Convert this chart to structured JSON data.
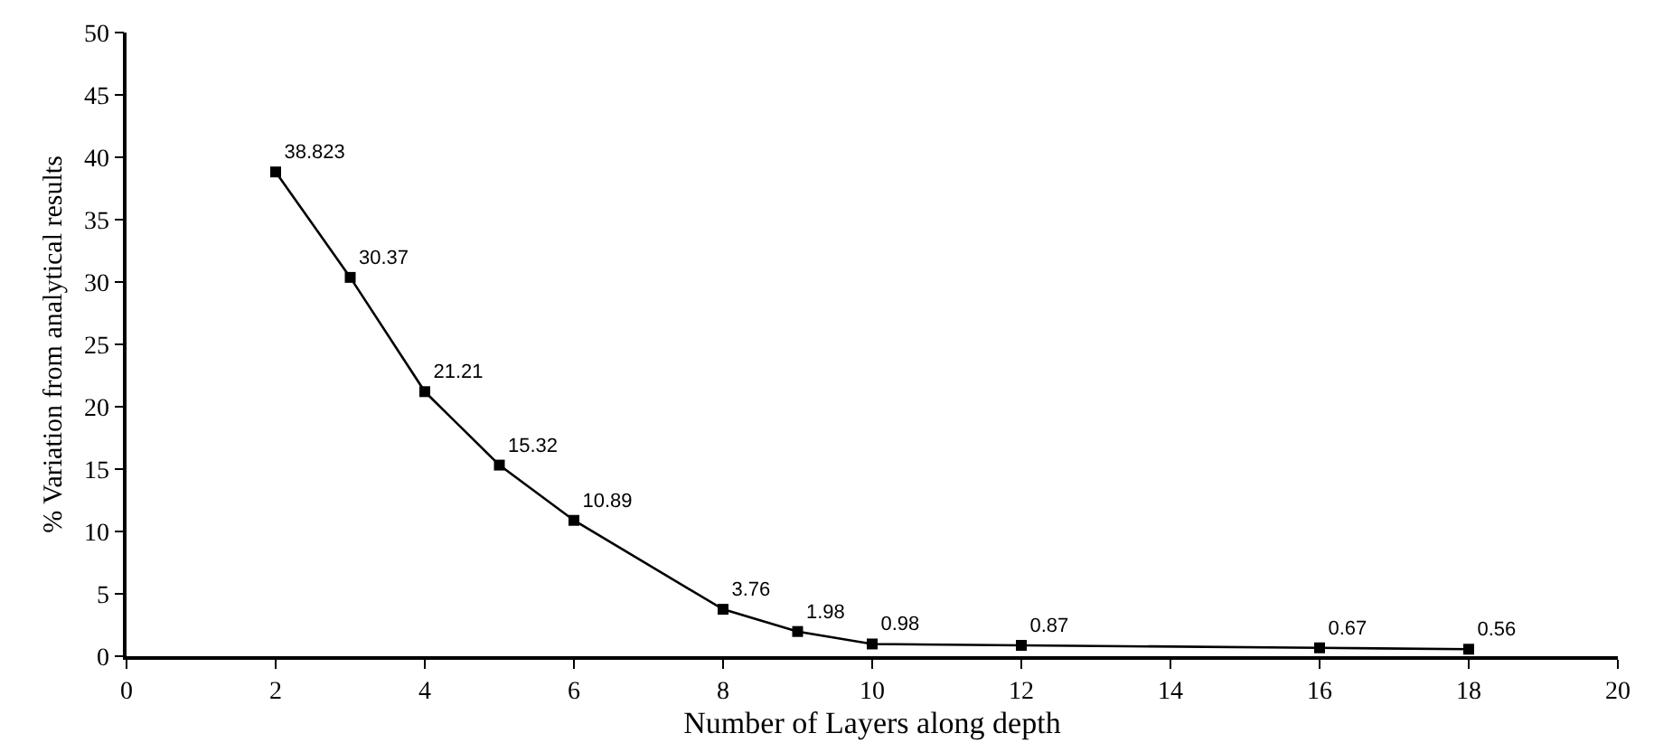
{
  "chart_data": {
    "type": "line",
    "xlabel": "Number of Layers along depth",
    "ylabel": "% Variation from analytical results",
    "x": [
      2,
      3,
      4,
      5,
      6,
      8,
      9,
      10,
      12,
      16,
      18
    ],
    "series": [
      {
        "color": "#000000",
        "values": [
          38.823,
          30.37,
          21.21,
          15.32,
          10.89,
          3.76,
          1.98,
          0.98,
          0.87,
          0.67,
          0.56
        ]
      }
    ],
    "xlim": [
      0,
      20
    ],
    "xticks": [
      0,
      2,
      4,
      6,
      8,
      10,
      12,
      14,
      16,
      18,
      20
    ],
    "ylim": [
      0,
      50
    ],
    "yticks": [
      0,
      5,
      10,
      15,
      20,
      25,
      30,
      35,
      40,
      45,
      50
    ],
    "data_labels": true,
    "legend": false,
    "marker": "square",
    "line_style": "solid"
  }
}
